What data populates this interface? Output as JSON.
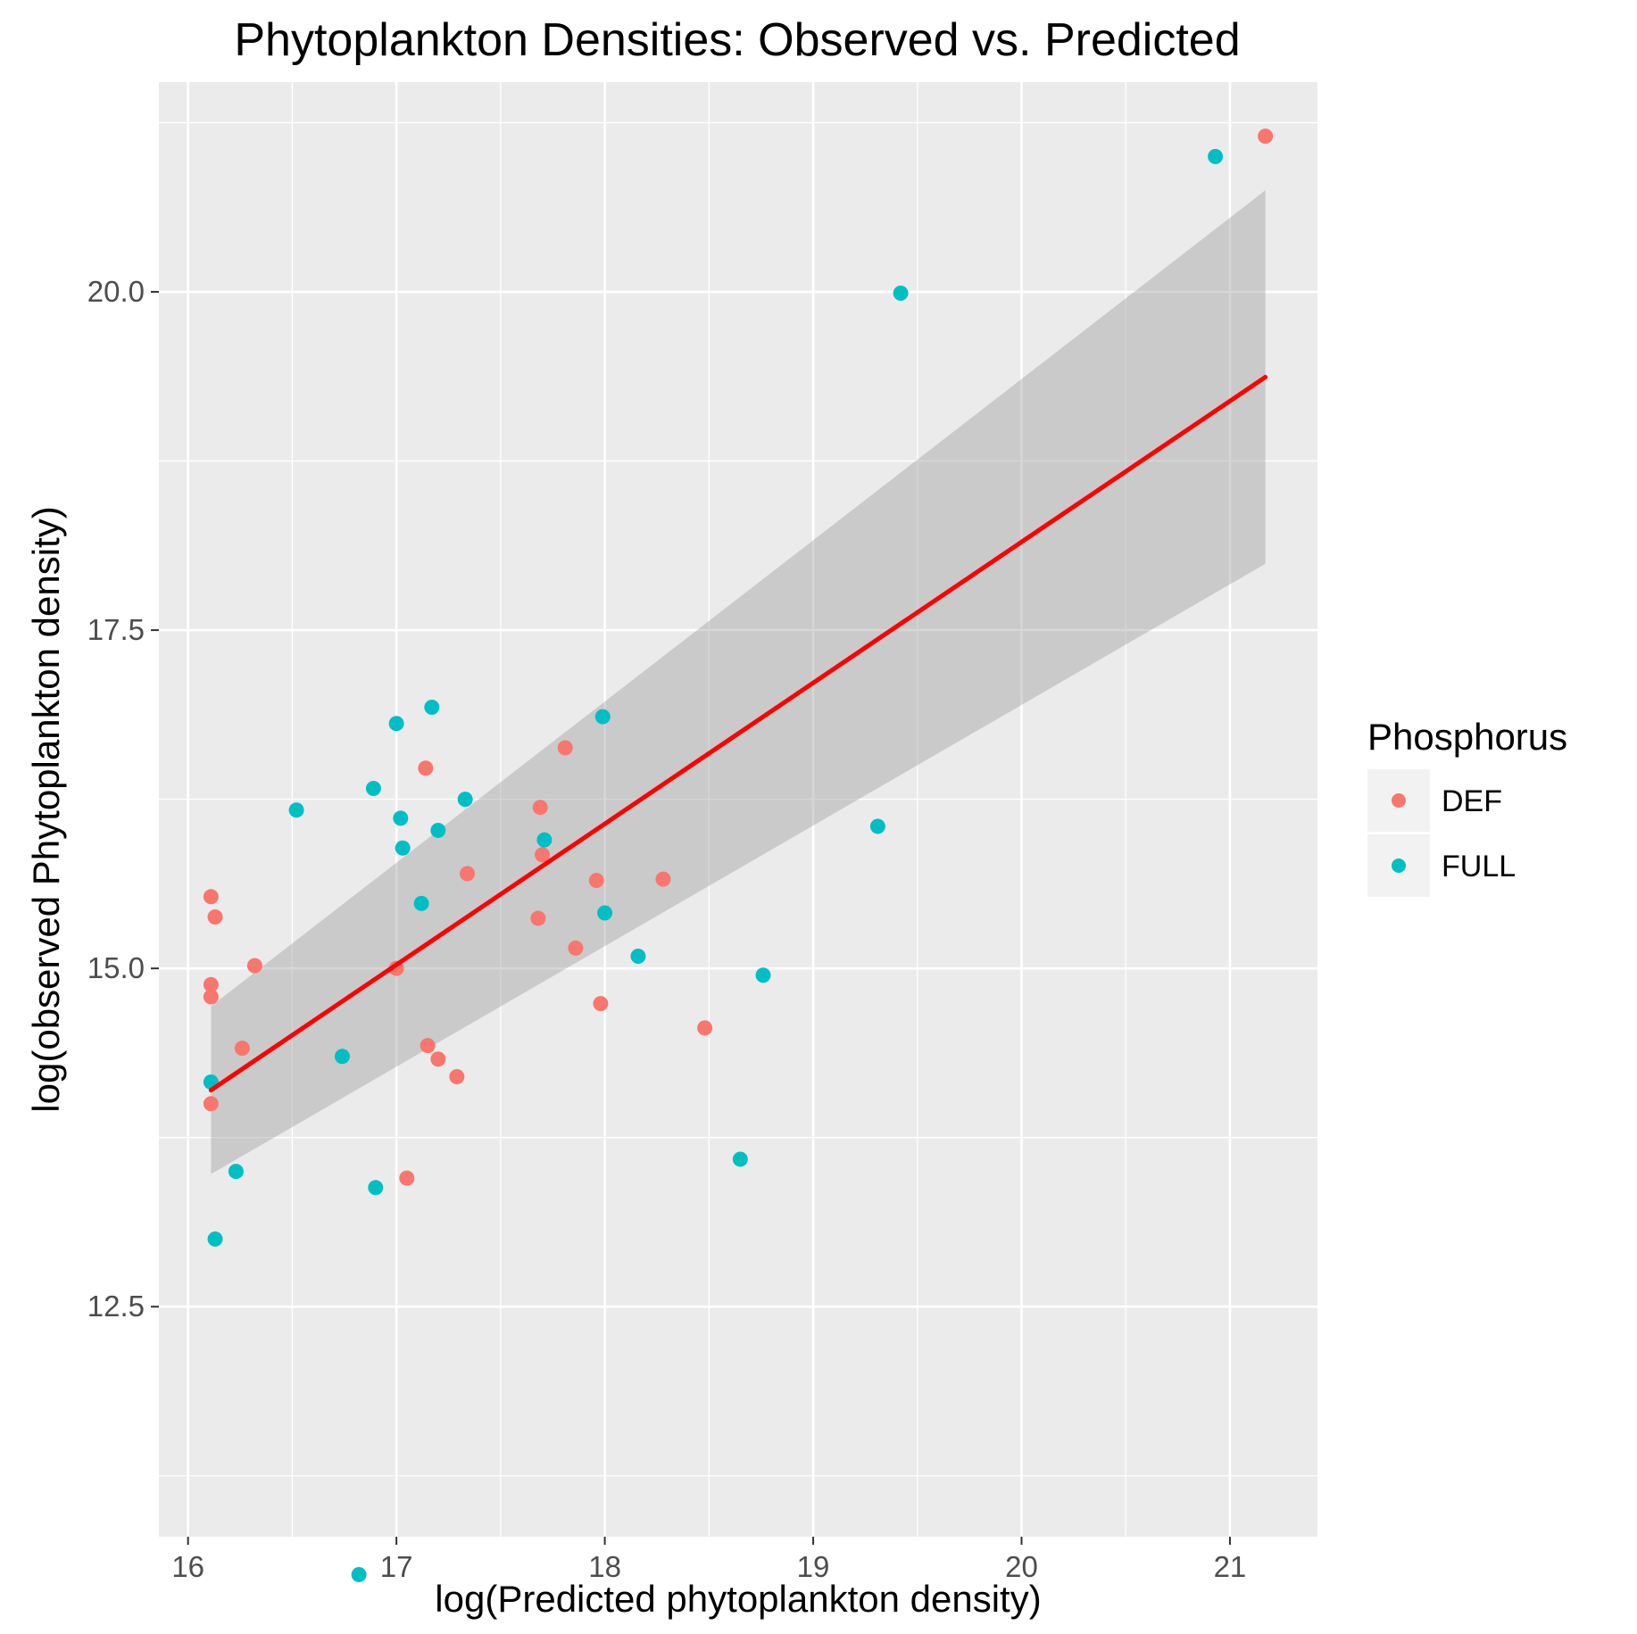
{
  "chart_data": {
    "type": "scatter",
    "title": "Phytoplankton Densities: Observed vs. Predicted",
    "xlabel": "log(Predicted phytoplankton density)",
    "ylabel": "log(observed Phytoplankton density)",
    "xlim": [
      15.86,
      21.42
    ],
    "ylim": [
      10.8,
      21.55
    ],
    "x_ticks": [
      16,
      17,
      18,
      19,
      20,
      21
    ],
    "x_tick_labels": [
      "16",
      "17",
      "18",
      "19",
      "20",
      "21"
    ],
    "y_ticks": [
      12.5,
      15.0,
      17.5,
      20.0
    ],
    "y_tick_labels": [
      "12.5",
      "15.0",
      "17.5",
      "20.0"
    ],
    "grid": true,
    "legend": {
      "title": "Phosphorus",
      "placement": "right",
      "entries": [
        {
          "label": "DEF",
          "color": "#F8766D"
        },
        {
          "label": "FULL",
          "color": "#00BFC4"
        }
      ]
    },
    "series": [
      {
        "name": "DEF",
        "color": "#F8766D",
        "points": [
          [
            16.11,
            15.53
          ],
          [
            16.13,
            15.38
          ],
          [
            16.11,
            14.88
          ],
          [
            16.11,
            14.79
          ],
          [
            16.26,
            14.41
          ],
          [
            16.11,
            14.0
          ],
          [
            16.32,
            15.02
          ],
          [
            17.0,
            15.0
          ],
          [
            17.14,
            16.48
          ],
          [
            17.34,
            15.7
          ],
          [
            17.15,
            14.43
          ],
          [
            17.2,
            14.33
          ],
          [
            17.29,
            14.2
          ],
          [
            17.05,
            13.45
          ],
          [
            17.69,
            16.19
          ],
          [
            17.7,
            15.84
          ],
          [
            17.68,
            15.37
          ],
          [
            17.81,
            16.63
          ],
          [
            17.86,
            15.15
          ],
          [
            17.96,
            15.65
          ],
          [
            17.98,
            14.74
          ],
          [
            18.28,
            15.66
          ],
          [
            18.48,
            14.56
          ],
          [
            21.17,
            21.15
          ]
        ]
      },
      {
        "name": "FULL",
        "color": "#00BFC4",
        "points": [
          [
            16.11,
            14.16
          ],
          [
            16.13,
            13.0
          ],
          [
            16.23,
            13.5
          ],
          [
            16.52,
            16.17
          ],
          [
            16.74,
            14.35
          ],
          [
            16.82,
            10.52
          ],
          [
            16.89,
            16.33
          ],
          [
            16.9,
            13.38
          ],
          [
            17.0,
            16.81
          ],
          [
            17.02,
            16.11
          ],
          [
            17.03,
            15.89
          ],
          [
            17.12,
            15.48
          ],
          [
            17.17,
            16.93
          ],
          [
            17.2,
            16.02
          ],
          [
            17.33,
            16.25
          ],
          [
            17.71,
            15.95
          ],
          [
            17.99,
            16.86
          ],
          [
            18.0,
            15.41
          ],
          [
            18.16,
            15.09
          ],
          [
            18.65,
            13.59
          ],
          [
            18.76,
            14.95
          ],
          [
            19.31,
            16.05
          ],
          [
            19.42,
            19.99
          ],
          [
            20.93,
            21.0
          ]
        ]
      }
    ],
    "fit_line": {
      "color": "#FF0000",
      "x": [
        16.11,
        21.17
      ],
      "y": [
        14.1,
        19.37
      ],
      "ci_lower": [
        13.48,
        17.99
      ],
      "ci_upper": [
        14.72,
        20.75
      ]
    }
  }
}
